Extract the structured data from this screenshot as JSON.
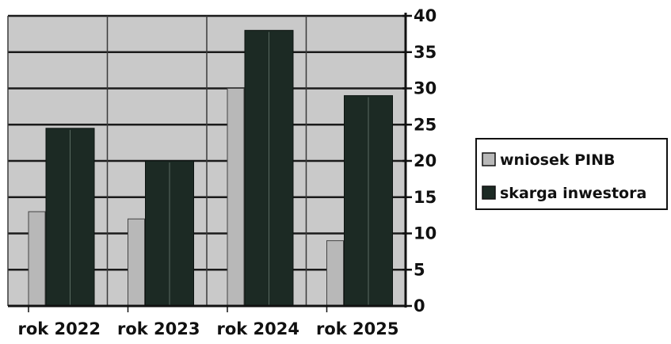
{
  "chart_data": {
    "type": "bar",
    "categories": [
      "rok 2022",
      "rok 2023",
      "rok 2024",
      "rok 2025"
    ],
    "series": [
      {
        "name": "wniosek PINB",
        "values": [
          13,
          12,
          30,
          9
        ],
        "color": "#b8b8b8"
      },
      {
        "name": "skarga inwestora",
        "values": [
          24.5,
          20,
          38,
          29
        ],
        "color": "#1c2a24"
      }
    ],
    "title": "",
    "xlabel": "",
    "ylabel": "",
    "ylim": [
      0,
      40
    ],
    "yticks": [
      0,
      5,
      10,
      15,
      20,
      25,
      30,
      35,
      40
    ],
    "y_axis_side": "right",
    "grid": true,
    "legend": "right",
    "plot_background": "#c9c9c9"
  }
}
